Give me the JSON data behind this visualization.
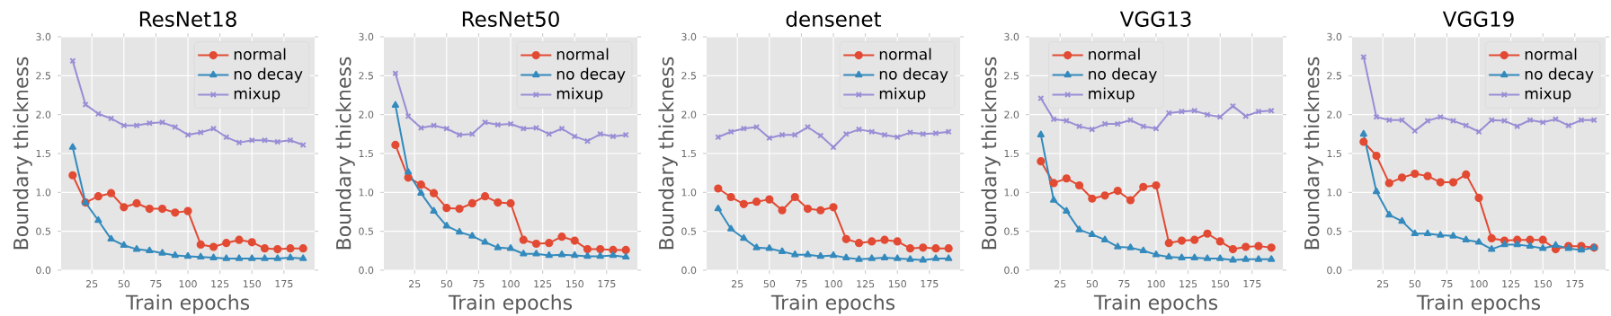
{
  "chart_data": [
    {
      "type": "line",
      "title": "ResNet18",
      "xlabel": "Train epochs",
      "ylabel": "Boundary thickness",
      "x": [
        10,
        20,
        30,
        40,
        50,
        60,
        70,
        80,
        90,
        100,
        110,
        120,
        130,
        140,
        150,
        160,
        170,
        180,
        190
      ],
      "series": [
        {
          "name": "normal",
          "color": "#e24a33",
          "marker": "circle",
          "values": [
            1.22,
            0.87,
            0.95,
            0.99,
            0.81,
            0.86,
            0.79,
            0.79,
            0.74,
            0.76,
            0.33,
            0.3,
            0.35,
            0.39,
            0.36,
            0.28,
            0.27,
            0.28,
            0.28
          ]
        },
        {
          "name": "no decay",
          "color": "#348abd",
          "marker": "triangle",
          "values": [
            1.58,
            0.87,
            0.64,
            0.4,
            0.32,
            0.27,
            0.25,
            0.22,
            0.19,
            0.18,
            0.17,
            0.16,
            0.15,
            0.15,
            0.15,
            0.15,
            0.15,
            0.16,
            0.15
          ]
        },
        {
          "name": "mixup",
          "color": "#988ed5",
          "marker": "cross",
          "values": [
            2.69,
            2.13,
            2.01,
            1.95,
            1.86,
            1.86,
            1.89,
            1.9,
            1.84,
            1.74,
            1.77,
            1.82,
            1.71,
            1.64,
            1.67,
            1.67,
            1.65,
            1.67,
            1.61
          ]
        }
      ],
      "xlim": [
        1,
        199
      ],
      "ylim": [
        0,
        3
      ],
      "xticks": [
        25,
        50,
        75,
        100,
        125,
        150,
        175
      ],
      "yticks": [
        {
          "value": 0,
          "label": "0.0"
        },
        {
          "value": 0.5,
          "label": "0.5"
        },
        {
          "value": 1,
          "label": "1.0"
        },
        {
          "value": 1.5,
          "label": "1.5"
        },
        {
          "value": 2,
          "label": "2.0"
        },
        {
          "value": 2.5,
          "label": "2.5"
        },
        {
          "value": 3,
          "label": "3.0"
        }
      ],
      "grid": true,
      "legend": "top right",
      "line_style": "solid"
    },
    {
      "type": "line",
      "title": "ResNet50",
      "xlabel": "Train epochs",
      "ylabel": "Boundary thickness",
      "x": [
        10,
        20,
        30,
        40,
        50,
        60,
        70,
        80,
        90,
        100,
        110,
        120,
        130,
        140,
        150,
        160,
        170,
        180,
        190
      ],
      "series": [
        {
          "name": "normal",
          "color": "#e24a33",
          "marker": "circle",
          "values": [
            1.61,
            1.19,
            1.1,
            0.99,
            0.8,
            0.79,
            0.86,
            0.95,
            0.87,
            0.86,
            0.39,
            0.34,
            0.35,
            0.43,
            0.38,
            0.27,
            0.27,
            0.26,
            0.26
          ]
        },
        {
          "name": "no decay",
          "color": "#348abd",
          "marker": "triangle",
          "values": [
            2.12,
            1.26,
            0.99,
            0.76,
            0.57,
            0.49,
            0.44,
            0.36,
            0.29,
            0.28,
            0.21,
            0.21,
            0.19,
            0.2,
            0.19,
            0.18,
            0.18,
            0.19,
            0.17
          ]
        },
        {
          "name": "mixup",
          "color": "#988ed5",
          "marker": "cross",
          "values": [
            2.53,
            1.98,
            1.83,
            1.86,
            1.82,
            1.74,
            1.75,
            1.9,
            1.87,
            1.88,
            1.82,
            1.83,
            1.75,
            1.82,
            1.72,
            1.66,
            1.75,
            1.72,
            1.74
          ]
        }
      ],
      "xlim": [
        1,
        199
      ],
      "ylim": [
        0,
        3
      ],
      "xticks": [
        25,
        50,
        75,
        100,
        125,
        150,
        175
      ],
      "yticks": [
        {
          "value": 0,
          "label": "0.0"
        },
        {
          "value": 0.5,
          "label": "0.5"
        },
        {
          "value": 1,
          "label": "1.0"
        },
        {
          "value": 1.5,
          "label": "1.5"
        },
        {
          "value": 2,
          "label": "2.0"
        },
        {
          "value": 2.5,
          "label": "2.5"
        },
        {
          "value": 3,
          "label": "3.0"
        }
      ],
      "grid": true,
      "legend": "top right",
      "line_style": "solid"
    },
    {
      "type": "line",
      "title": "densenet",
      "xlabel": "Train epochs",
      "ylabel": "Boundary thickness",
      "x": [
        10,
        20,
        30,
        40,
        50,
        60,
        70,
        80,
        90,
        100,
        110,
        120,
        130,
        140,
        150,
        160,
        170,
        180,
        190
      ],
      "series": [
        {
          "name": "normal",
          "color": "#e24a33",
          "marker": "circle",
          "values": [
            1.05,
            0.94,
            0.85,
            0.88,
            0.91,
            0.77,
            0.94,
            0.79,
            0.77,
            0.81,
            0.4,
            0.35,
            0.37,
            0.39,
            0.37,
            0.28,
            0.29,
            0.28,
            0.28
          ]
        },
        {
          "name": "no decay",
          "color": "#348abd",
          "marker": "triangle",
          "values": [
            0.79,
            0.53,
            0.41,
            0.29,
            0.28,
            0.24,
            0.2,
            0.2,
            0.18,
            0.19,
            0.16,
            0.14,
            0.15,
            0.16,
            0.15,
            0.14,
            0.13,
            0.15,
            0.15
          ]
        },
        {
          "name": "mixup",
          "color": "#988ed5",
          "marker": "cross",
          "values": [
            1.71,
            1.78,
            1.82,
            1.84,
            1.7,
            1.74,
            1.74,
            1.84,
            1.73,
            1.58,
            1.75,
            1.81,
            1.78,
            1.74,
            1.71,
            1.77,
            1.75,
            1.76,
            1.78
          ]
        }
      ],
      "xlim": [
        1,
        199
      ],
      "ylim": [
        0,
        3
      ],
      "xticks": [
        25,
        50,
        75,
        100,
        125,
        150,
        175
      ],
      "yticks": [
        {
          "value": 0,
          "label": "0.0"
        },
        {
          "value": 0.5,
          "label": "0.5"
        },
        {
          "value": 1,
          "label": "1.0"
        },
        {
          "value": 1.5,
          "label": "1.5"
        },
        {
          "value": 2,
          "label": "2.0"
        },
        {
          "value": 2.5,
          "label": "2.5"
        },
        {
          "value": 3,
          "label": "3.0"
        }
      ],
      "grid": true,
      "legend": "top right",
      "line_style": "solid"
    },
    {
      "type": "line",
      "title": "VGG13",
      "xlabel": "Train epochs",
      "ylabel": "Boundary thickness",
      "x": [
        10,
        20,
        30,
        40,
        50,
        60,
        70,
        80,
        90,
        100,
        110,
        120,
        130,
        140,
        150,
        160,
        170,
        180,
        190
      ],
      "series": [
        {
          "name": "normal",
          "color": "#e24a33",
          "marker": "circle",
          "values": [
            1.4,
            1.12,
            1.18,
            1.09,
            0.92,
            0.96,
            1.02,
            0.9,
            1.07,
            1.09,
            0.35,
            0.38,
            0.39,
            0.47,
            0.37,
            0.27,
            0.3,
            0.31,
            0.29
          ]
        },
        {
          "name": "no decay",
          "color": "#348abd",
          "marker": "triangle",
          "values": [
            1.74,
            0.9,
            0.76,
            0.52,
            0.46,
            0.39,
            0.3,
            0.29,
            0.25,
            0.2,
            0.17,
            0.16,
            0.16,
            0.15,
            0.15,
            0.13,
            0.14,
            0.14,
            0.14
          ]
        },
        {
          "name": "mixup",
          "color": "#988ed5",
          "marker": "cross",
          "values": [
            2.21,
            1.94,
            1.92,
            1.85,
            1.81,
            1.88,
            1.88,
            1.93,
            1.85,
            1.82,
            2.02,
            2.04,
            2.05,
            2.0,
            1.97,
            2.11,
            1.98,
            2.04,
            2.05
          ]
        }
      ],
      "xlim": [
        1,
        199
      ],
      "ylim": [
        0,
        3
      ],
      "xticks": [
        25,
        50,
        75,
        100,
        125,
        150,
        175
      ],
      "yticks": [
        {
          "value": 0,
          "label": "0.0"
        },
        {
          "value": 0.5,
          "label": "0.5"
        },
        {
          "value": 1,
          "label": "1.0"
        },
        {
          "value": 1.5,
          "label": "1.5"
        },
        {
          "value": 2,
          "label": "2.0"
        },
        {
          "value": 2.5,
          "label": "2.5"
        },
        {
          "value": 3,
          "label": "3.0"
        }
      ],
      "grid": true,
      "legend": "top left",
      "line_style": "solid"
    },
    {
      "type": "line",
      "title": "VGG19",
      "xlabel": "Train epochs",
      "ylabel": "Boundary thickness",
      "x": [
        10,
        20,
        30,
        40,
        50,
        60,
        70,
        80,
        90,
        100,
        110,
        120,
        130,
        140,
        150,
        160,
        170,
        180,
        190
      ],
      "series": [
        {
          "name": "normal",
          "color": "#e24a33",
          "marker": "circle",
          "values": [
            1.65,
            1.47,
            1.12,
            1.19,
            1.24,
            1.21,
            1.13,
            1.13,
            1.23,
            0.93,
            0.41,
            0.38,
            0.39,
            0.39,
            0.39,
            0.27,
            0.31,
            0.31,
            0.29
          ]
        },
        {
          "name": "no decay",
          "color": "#348abd",
          "marker": "triangle",
          "values": [
            1.75,
            1.01,
            0.71,
            0.63,
            0.47,
            0.47,
            0.45,
            0.44,
            0.39,
            0.36,
            0.27,
            0.33,
            0.33,
            0.31,
            0.28,
            0.32,
            0.28,
            0.26,
            0.29
          ]
        },
        {
          "name": "mixup",
          "color": "#988ed5",
          "marker": "cross",
          "values": [
            2.74,
            1.97,
            1.93,
            1.93,
            1.79,
            1.92,
            1.97,
            1.92,
            1.86,
            1.78,
            1.93,
            1.92,
            1.85,
            1.93,
            1.9,
            1.94,
            1.86,
            1.93,
            1.93
          ]
        }
      ],
      "xlim": [
        1,
        199
      ],
      "ylim": [
        0,
        3
      ],
      "xticks": [
        25,
        50,
        75,
        100,
        125,
        150,
        175
      ],
      "yticks": [
        {
          "value": 0,
          "label": "0.0"
        },
        {
          "value": 0.5,
          "label": "0.5"
        },
        {
          "value": 1,
          "label": "1.0"
        },
        {
          "value": 1.5,
          "label": "1.5"
        },
        {
          "value": 2,
          "label": "2.0"
        },
        {
          "value": 2.5,
          "label": "2.5"
        },
        {
          "value": 3,
          "label": "3.0"
        }
      ],
      "grid": true,
      "legend": "top right",
      "line_style": "solid"
    }
  ]
}
